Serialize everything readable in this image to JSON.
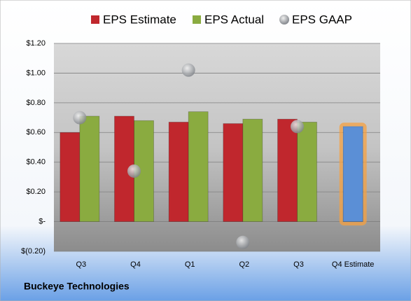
{
  "chart_data": {
    "type": "bar",
    "categories": [
      "Q3",
      "Q4",
      "Q1",
      "Q2",
      "Q3",
      "Q4 Estimate"
    ],
    "series": [
      {
        "name": "EPS Estimate",
        "color": "#c0272d",
        "values": [
          0.6,
          0.71,
          0.67,
          0.66,
          0.69,
          0.64
        ],
        "highlight_index": 5,
        "highlight_color": "#5b8fd6",
        "highlight_glow": "#f5a040"
      },
      {
        "name": "EPS Actual",
        "color": "#8aab40",
        "values": [
          0.71,
          0.68,
          0.74,
          0.69,
          0.67,
          null
        ]
      },
      {
        "name": "EPS GAAP",
        "color": "#a0a4aa",
        "marker": "sphere",
        "values": [
          0.7,
          0.34,
          1.02,
          -0.14,
          0.64,
          null
        ]
      }
    ],
    "ylim": [
      -0.2,
      1.2
    ],
    "yticks": [
      {
        "value": -0.2,
        "label": "$(0.20)"
      },
      {
        "value": 0,
        "label": "$-"
      },
      {
        "value": 0.2,
        "label": "$0.20"
      },
      {
        "value": 0.4,
        "label": "$0.40"
      },
      {
        "value": 0.6,
        "label": "$0.60"
      },
      {
        "value": 0.8,
        "label": "$0.80"
      },
      {
        "value": 1.0,
        "label": "$1.00"
      },
      {
        "value": 1.2,
        "label": "$1.20"
      }
    ],
    "grid": true,
    "footer": "Buckeye Technologies"
  }
}
